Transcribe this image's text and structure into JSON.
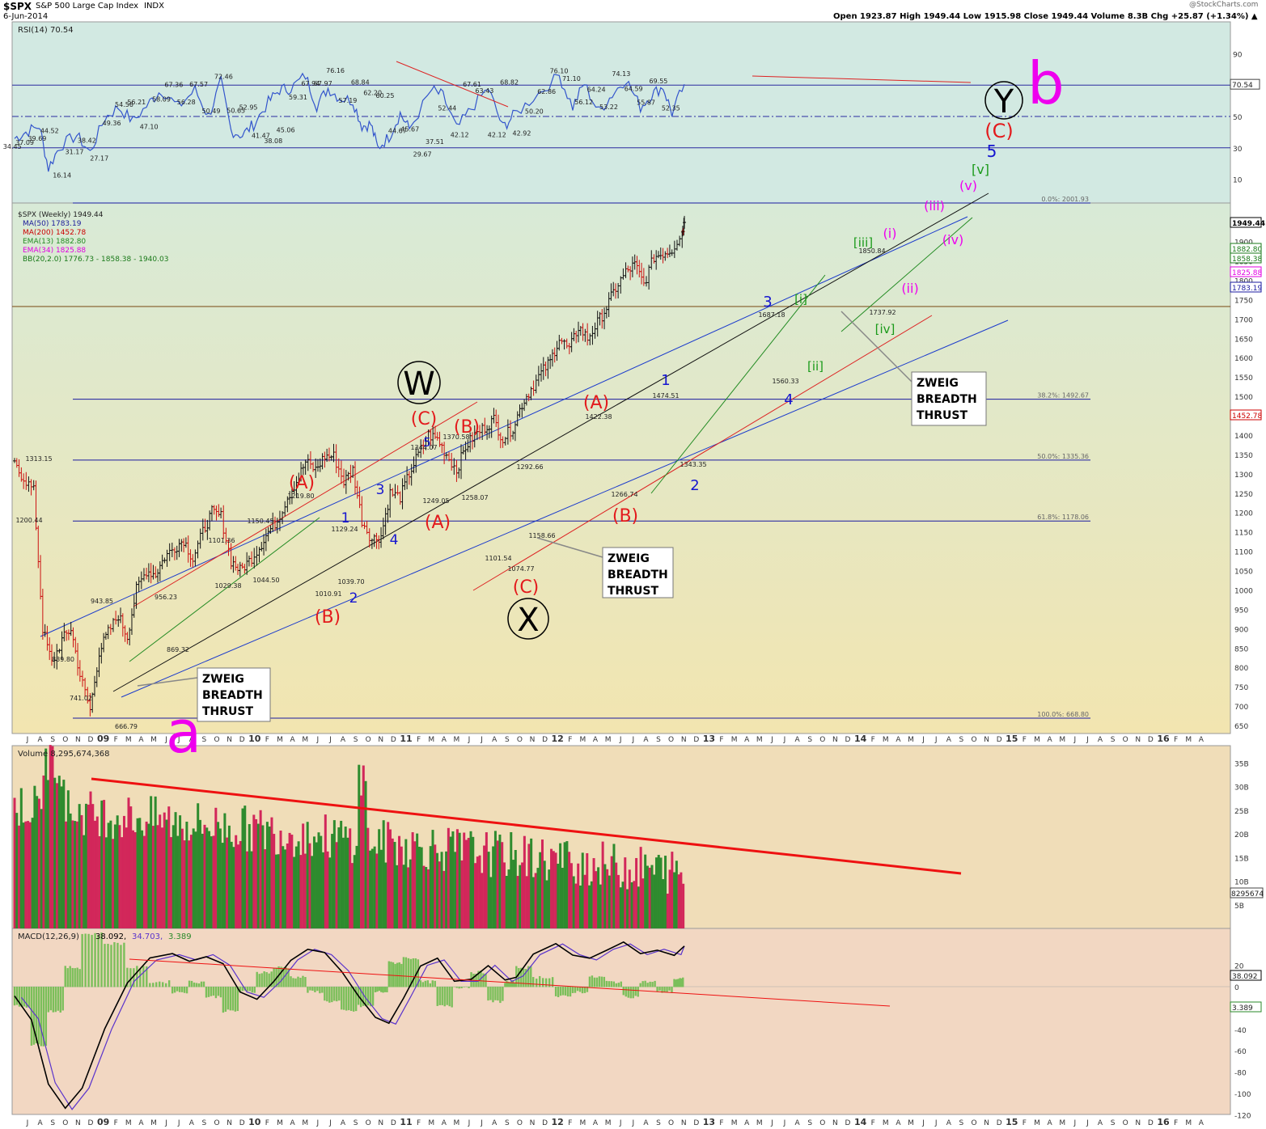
{
  "header": {
    "symbol": "$SPX",
    "name": "S&P 500 Large Cap Index",
    "exchange": "INDX",
    "date": "6-Jun-2014",
    "ohlc": "Open 1923.87   High 1949.44   Low 1915.98   Close 1949.44   Volume 8.3B   Chg +25.87 (+1.34%) ▲",
    "credit": "@StockCharts.com"
  },
  "colors": {
    "rsi_bg": "#d2e9e2",
    "price_bg_top": "#d8ead7",
    "price_bg_bottom": "#f2e5b0",
    "volume_bg": "#f0ddb8",
    "macd_bg": "#f2d7c2",
    "price_line": "#000000",
    "up_bar": "#2e8b2e",
    "down_bar": "#d2275a",
    "label_red": "#e31a1c",
    "label_blue": "#1515d0",
    "label_green": "#1a9a1a",
    "label_magenta": "#ee00ee",
    "ma50": "#1a1a9a",
    "ma200": "#cc0000",
    "ema13": "#228b22",
    "ema34": "#e200e2"
  },
  "time_axis": {
    "labels": [
      "J",
      "A",
      "S",
      "O",
      "N",
      "D",
      "09",
      "F",
      "M",
      "A",
      "M",
      "J",
      "J",
      "A",
      "S",
      "O",
      "N",
      "D",
      "10",
      "F",
      "M",
      "A",
      "M",
      "J",
      "J",
      "A",
      "S",
      "O",
      "N",
      "D",
      "11",
      "F",
      "M",
      "A",
      "M",
      "J",
      "J",
      "A",
      "S",
      "O",
      "N",
      "D",
      "12",
      "F",
      "M",
      "A",
      "M",
      "J",
      "J",
      "A",
      "S",
      "O",
      "N",
      "D",
      "13",
      "F",
      "M",
      "A",
      "M",
      "J",
      "J",
      "A",
      "S",
      "O",
      "N",
      "D",
      "14",
      "F",
      "M",
      "A",
      "M",
      "J",
      "J",
      "A",
      "S",
      "O",
      "N",
      "D",
      "15",
      "F",
      "M",
      "A",
      "M",
      "J",
      "J",
      "A",
      "S",
      "O",
      "N",
      "D",
      "16",
      "F",
      "M",
      "A"
    ]
  },
  "rsi_panel": {
    "legend": "RSI(14) 70.54",
    "current_label": "70.54",
    "y_ticks": [
      "90",
      "70",
      "50",
      "30",
      "10"
    ],
    "annotations": [
      "34.45",
      "37.09",
      "39.69",
      "44.52",
      "16.14",
      "31.17",
      "38.42",
      "27.17",
      "49.36",
      "54.56",
      "56.21",
      "47.10",
      "58.09",
      "67.36",
      "56.28",
      "67.57",
      "50.49",
      "72.46",
      "50.65",
      "52.95",
      "41.47",
      "38.08",
      "45.06",
      "59.31",
      "67.94",
      "67.97",
      "76.16",
      "57.19",
      "68.84",
      "62.20",
      "60.25",
      "44.67",
      "45.67",
      "29.67",
      "37.51",
      "52.44",
      "42.12",
      "67.61",
      "63.43",
      "42.12",
      "68.82",
      "42.92",
      "50.20",
      "62.86",
      "76.10",
      "71.10",
      "56.12",
      "64.24",
      "53.22",
      "74.13",
      "64.59",
      "55.87",
      "69.55",
      "52.35"
    ]
  },
  "price_panel": {
    "legend": {
      "title": "$SPX (Weekly) 1949.44",
      "ma50": "MA(50) 1783.19",
      "ma200": "MA(200) 1452.78",
      "ema13": "EMA(13) 1882.80",
      "ema34": "EMA(34) 1825.88",
      "bb": "BB(20,2.0) 1776.73 - 1858.38 - 1940.03"
    },
    "y_ticks": [
      "1900",
      "1850",
      "1800",
      "1750",
      "1700",
      "1650",
      "1600",
      "1550",
      "1500",
      "1450",
      "1400",
      "1350",
      "1300",
      "1250",
      "1200",
      "1150",
      "1100",
      "1050",
      "1000",
      "950",
      "900",
      "850",
      "800",
      "750",
      "700",
      "650"
    ],
    "right_labels": [
      "1949.44",
      "1882.80",
      "1858.38",
      "1825.88",
      "1783.19",
      "1452.78"
    ],
    "fib_levels": [
      {
        "label": "0.0%: 2001.93",
        "value": 2001.93
      },
      {
        "label": "38.2%: 1492.67",
        "value": 1492.67
      },
      {
        "label": "50.0%: 1335.36",
        "value": 1335.36
      },
      {
        "label": "61.8%: 1178.06",
        "value": 1178.06
      },
      {
        "label": "100.0%: 668.80",
        "value": 668.8
      }
    ],
    "price_labels": [
      "1313.15",
      "1200.44",
      "943.85",
      "839.80",
      "741.02",
      "666.79",
      "956.23",
      "869.32",
      "1101.36",
      "1029.38",
      "1150.45",
      "1044.50",
      "1219.80",
      "1010.91",
      "1039.70",
      "1129.24",
      "1249.05",
      "1344.07",
      "1370.58",
      "1258.07",
      "1292.66",
      "1101.54",
      "1074.77",
      "1158.66",
      "1422.38",
      "1266.74",
      "1474.51",
      "1343.35",
      "1687.18",
      "1560.33",
      "1850.84",
      "1737.92"
    ],
    "wave_labels": {
      "a": "a",
      "b": "b",
      "W": "W",
      "X": "X",
      "Y": "Y",
      "C_top": "(C)",
      "A": "(A)",
      "B": "(B)",
      "C": "(C)",
      "n1": "1",
      "n2": "2",
      "n3": "3",
      "n4": "4",
      "n5": "5",
      "i_g": "[i]",
      "ii_g": "[ii]",
      "iii_g": "[iii]",
      "iv_g": "[iv]",
      "v_g": "[v]",
      "i_m": "(i)",
      "ii_m": "(ii)",
      "iii_m": "(iii)",
      "iv_m": "(iv)",
      "v_m": "(v)"
    },
    "callout": [
      "ZWEIG",
      "BREADTH",
      "THRUST"
    ]
  },
  "volume_panel": {
    "legend": "Volume 8,295,674,368",
    "current_label": "8295674",
    "y_ticks": [
      "35B",
      "30B",
      "25B",
      "20B",
      "15B",
      "10B",
      "5B"
    ]
  },
  "macd_panel": {
    "legend_prefix": "MACD(12,26,9)",
    "legend_macd": "38.092,",
    "legend_signal": "34.703,",
    "legend_hist": "3.389",
    "right_labels": [
      "38.092",
      "3.389"
    ],
    "y_ticks": [
      "20",
      "0",
      "-20",
      "-40",
      "-60",
      "-80",
      "-100",
      "-120"
    ]
  },
  "chart_data": {
    "type": "candlestick",
    "title": "$SPX S&P 500 Large Cap Index INDX (Weekly)",
    "x_range": [
      "Jul 2008",
      "Apr 2016"
    ],
    "y_range": [
      650,
      2050
    ],
    "price_path": [
      [
        2008.5,
        1320
      ],
      [
        2008.58,
        1290
      ],
      [
        2008.67,
        1255
      ],
      [
        2008.75,
        900
      ],
      [
        2008.83,
        810
      ],
      [
        2008.92,
        870
      ],
      [
        2009.0,
        900
      ],
      [
        2009.08,
        780
      ],
      [
        2009.17,
        690
      ],
      [
        2009.25,
        840
      ],
      [
        2009.33,
        890
      ],
      [
        2009.42,
        935
      ],
      [
        2009.5,
        880
      ],
      [
        2009.58,
        1000
      ],
      [
        2009.67,
        1050
      ],
      [
        2009.75,
        1040
      ],
      [
        2009.83,
        1085
      ],
      [
        2009.92,
        1110
      ],
      [
        2010.0,
        1130
      ],
      [
        2010.08,
        1080
      ],
      [
        2010.17,
        1150
      ],
      [
        2010.25,
        1200
      ],
      [
        2010.33,
        1190
      ],
      [
        2010.42,
        1075
      ],
      [
        2010.5,
        1050
      ],
      [
        2010.58,
        1075
      ],
      [
        2010.67,
        1110
      ],
      [
        2010.75,
        1150
      ],
      [
        2010.83,
        1180
      ],
      [
        2010.92,
        1240
      ],
      [
        2011.0,
        1280
      ],
      [
        2011.08,
        1330
      ],
      [
        2011.17,
        1310
      ],
      [
        2011.25,
        1345
      ],
      [
        2011.33,
        1345
      ],
      [
        2011.42,
        1280
      ],
      [
        2011.5,
        1310
      ],
      [
        2011.58,
        1180
      ],
      [
        2011.67,
        1130
      ],
      [
        2011.75,
        1140
      ],
      [
        2011.83,
        1250
      ],
      [
        2011.92,
        1240
      ],
      [
        2012.0,
        1300
      ],
      [
        2012.08,
        1350
      ],
      [
        2012.17,
        1400
      ],
      [
        2012.25,
        1390
      ],
      [
        2012.33,
        1350
      ],
      [
        2012.42,
        1310
      ],
      [
        2012.5,
        1370
      ],
      [
        2012.58,
        1400
      ],
      [
        2012.67,
        1420
      ],
      [
        2012.75,
        1440
      ],
      [
        2012.83,
        1390
      ],
      [
        2012.92,
        1420
      ],
      [
        2013.0,
        1480
      ],
      [
        2013.08,
        1520
      ],
      [
        2013.17,
        1560
      ],
      [
        2013.25,
        1590
      ],
      [
        2013.33,
        1650
      ],
      [
        2013.42,
        1620
      ],
      [
        2013.5,
        1680
      ],
      [
        2013.58,
        1650
      ],
      [
        2013.67,
        1690
      ],
      [
        2013.75,
        1730
      ],
      [
        2013.83,
        1780
      ],
      [
        2013.92,
        1820
      ],
      [
        2014.0,
        1840
      ],
      [
        2014.08,
        1790
      ],
      [
        2014.17,
        1860
      ],
      [
        2014.25,
        1870
      ],
      [
        2014.33,
        1880
      ],
      [
        2014.42,
        1925
      ],
      [
        2014.44,
        1949.44
      ]
    ],
    "current": {
      "open": 1923.87,
      "high": 1949.44,
      "low": 1915.98,
      "close": 1949.44,
      "volume": "8.3B",
      "change": "+25.87 (+1.34%)"
    },
    "indicators": {
      "rsi14": 70.54,
      "ma50": 1783.19,
      "ma200": 1452.78,
      "ema13": 1882.8,
      "ema34": 1825.88,
      "bb": [
        1776.73,
        1858.38,
        1940.03
      ],
      "macd": 38.092,
      "signal": 34.703,
      "histogram": 3.389
    }
  }
}
